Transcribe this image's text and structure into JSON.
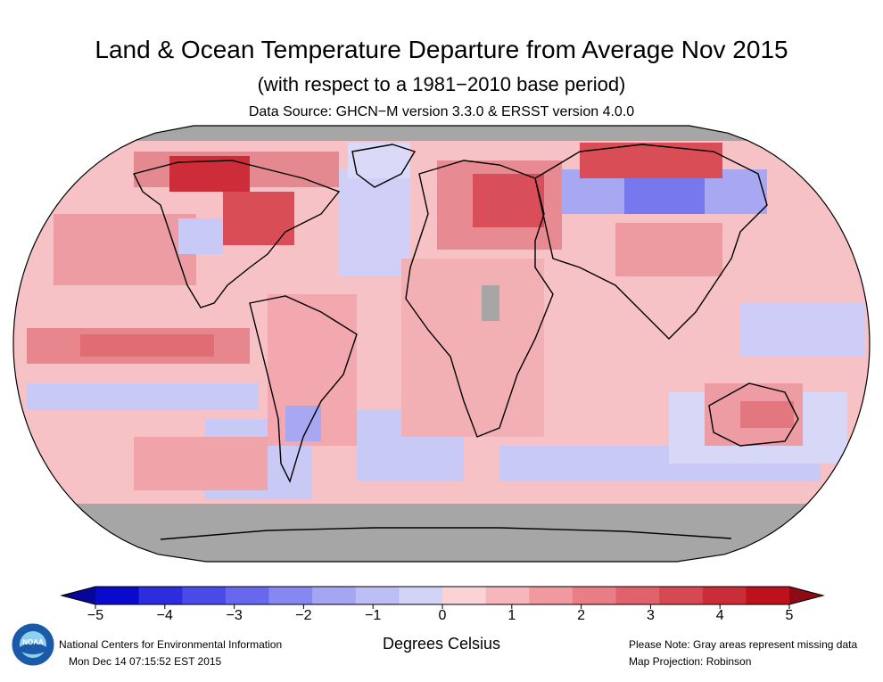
{
  "header": {
    "title": "Land & Ocean Temperature Departure from Average Nov 2015",
    "subtitle": "(with respect to a 1981−2010 base period)",
    "source": "Data Source: GHCN−M version 3.3.0 & ERSST version 4.0.0"
  },
  "legend": {
    "ticks": [
      "−5",
      "−4",
      "−3",
      "−2",
      "−1",
      "0",
      "1",
      "2",
      "3",
      "4",
      "5"
    ],
    "units": "Degrees Celsius",
    "colors": [
      "#0a0acc",
      "#2d2de0",
      "#4a4ae8",
      "#6868ee",
      "#8787f1",
      "#a5a5f4",
      "#bdbdf6",
      "#d3d3f8",
      "#fad3d6",
      "#f6b6bb",
      "#f09aa0",
      "#e97e86",
      "#e0636c",
      "#d64852",
      "#cb2c37",
      "#bd121e"
    ]
  },
  "map": {
    "projection": "Robinson",
    "missing_color": "#a6a6a6",
    "note": "Please Note: Gray areas represent missing data"
  },
  "footer": {
    "org": "National Centers for Environmental Information",
    "timestamp": "Mon Dec 14 07:15:52 EST 2015",
    "note": "Please Note: Gray areas represent missing data",
    "projection": "Map Projection: Robinson",
    "logo_text": "NOAA"
  }
}
